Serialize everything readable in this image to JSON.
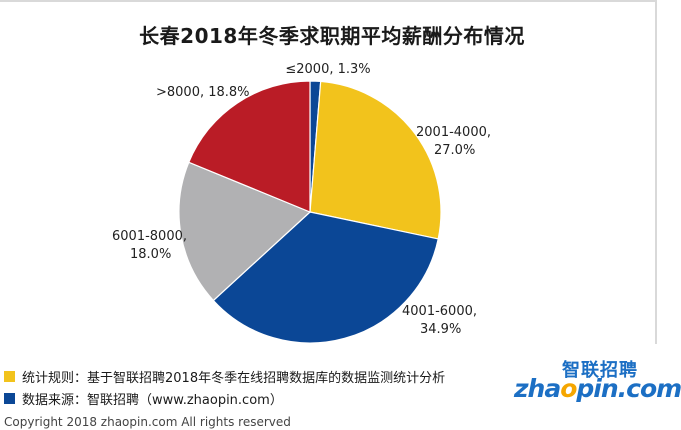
{
  "title": "长春2018年冬季求职期平均薪酬分布情况",
  "chart_data": {
    "type": "pie",
    "title": "长春2018年冬季求职期平均薪酬分布情况",
    "slices": [
      {
        "category": "≤2000",
        "value": 1.3,
        "label": "≤2000, 1.3%",
        "color": "#0b4796"
      },
      {
        "category": "2001-4000",
        "value": 27.0,
        "label_lines": [
          "2001-4000,",
          "27.0%"
        ],
        "color": "#f2c31c"
      },
      {
        "category": "4001-6000",
        "value": 34.9,
        "label_lines": [
          "4001-6000,",
          "34.9%"
        ],
        "color": "#0b4796"
      },
      {
        "category": "6001-8000",
        "value": 18.0,
        "label_lines": [
          "6001-8000,",
          "18.0%"
        ],
        "color": "#b1b1b3"
      },
      {
        "category": ">8000",
        "value": 18.8,
        "label": ">8000, 18.8%",
        "color": "#ba1c26"
      }
    ]
  },
  "footnotes": {
    "stat_rule": "统计规则：基于智联招聘2018年冬季在线招聘数据库的数据监测统计分析",
    "data_source": "数据来源：智联招聘（www.zhaopin.com）",
    "clipped_line": "Copyright 2018 zhaopin.com All rights reserved",
    "stat_color": "#f2c31c",
    "source_color": "#0b4796"
  },
  "logo": {
    "cn": "智联招聘",
    "en_pre": "zha",
    "en_o": "o",
    "en_post": "pin.com"
  }
}
